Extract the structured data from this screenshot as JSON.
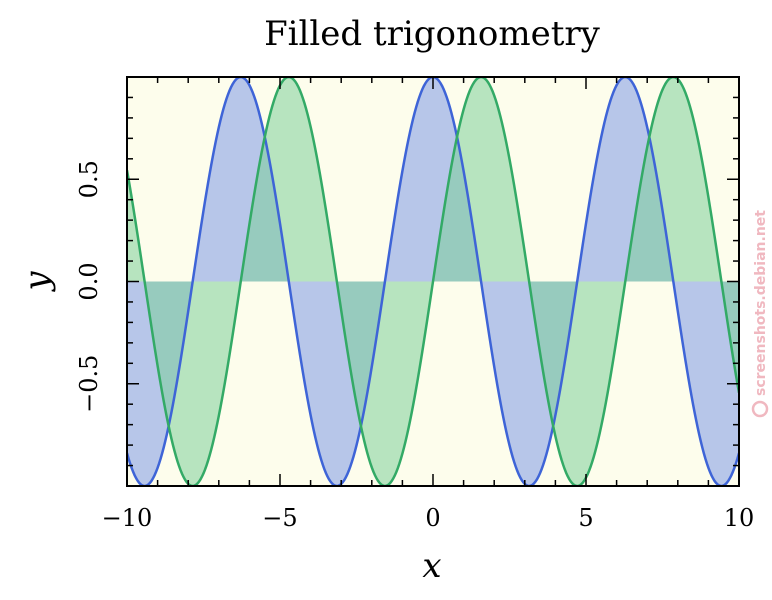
{
  "chart_data": {
    "type": "area",
    "title": "Filled trigonometry",
    "xlabel": "x",
    "ylabel": "y",
    "xlim": [
      -10,
      10
    ],
    "ylim": [
      -1,
      1
    ],
    "x_ticks": [
      -10,
      -5,
      0,
      5,
      10
    ],
    "x_tick_labels": [
      "−10",
      "−5",
      "0",
      "5",
      "10"
    ],
    "y_ticks": [
      -0.5,
      0.0,
      0.5
    ],
    "y_tick_labels": [
      "−0.5",
      "0.0",
      "0.5"
    ],
    "fill_baseline": 0,
    "x_samples": 400,
    "background_color": "#fdfdec",
    "series": [
      {
        "function": "cos(x)",
        "line_color": "#3e64d7",
        "fill_color": "#aabce9",
        "fill_opacity": 0.85
      },
      {
        "function": "sin(x)",
        "line_color": "#33aa66",
        "fill_color": "#7dcf9a",
        "fill_opacity": 0.55
      }
    ],
    "grid": false,
    "legend": "none"
  },
  "watermark": {
    "text": "screenshots.debian.net",
    "icon": "debian-swirl-icon",
    "color": "#f0b8c0"
  }
}
